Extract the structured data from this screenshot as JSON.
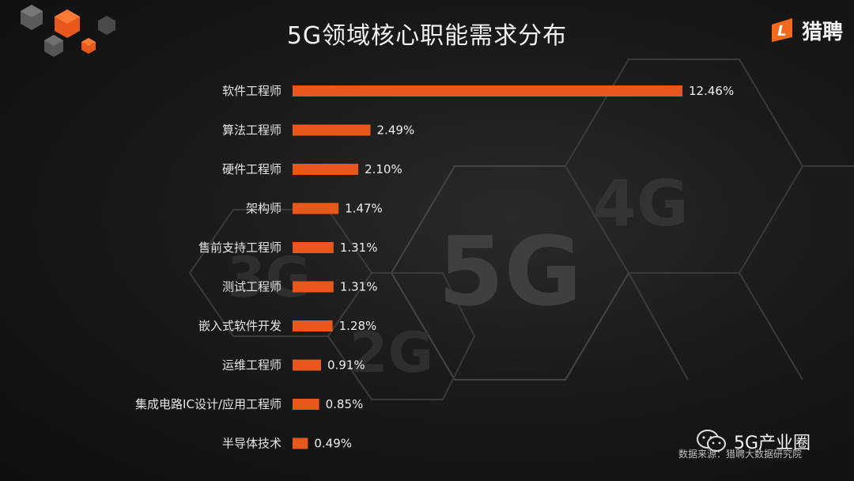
{
  "header": {
    "title": "5G领域核心职能需求分布",
    "brand_name": "猎聘"
  },
  "watermark": {
    "account_name": "5G产业圈",
    "source_text": "数据来源：猎聘大数据研究院"
  },
  "background": {
    "hex_labels": [
      "5G",
      "4G",
      "3G",
      "2G"
    ]
  },
  "colors": {
    "bar": "#e8581d",
    "accent": "#ff6a1a",
    "background": "#141414"
  },
  "icons": [
    "cube-cluster-decoration",
    "liepin-logo-icon",
    "wechat-icon"
  ],
  "chart_data": {
    "type": "bar",
    "orientation": "horizontal",
    "title": "5G领域核心职能需求分布",
    "categories": [
      "软件工程师",
      "算法工程师",
      "硬件工程师",
      "架构师",
      "售前支持工程师",
      "测试工程师",
      "嵌入式软件开发",
      "运维工程师",
      "集成电路IC设计/应用工程师",
      "半导体技术"
    ],
    "values": [
      12.46,
      2.49,
      2.1,
      1.47,
      1.31,
      1.31,
      1.28,
      0.91,
      0.85,
      0.49
    ],
    "value_labels": [
      "12.46%",
      "2.49%",
      "2.10%",
      "1.47%",
      "1.31%",
      "1.31%",
      "1.28%",
      "0.91%",
      "0.85%",
      "0.49%"
    ],
    "unit": "%",
    "xlim": [
      0,
      12.46
    ],
    "grid": false,
    "legend": "none"
  }
}
